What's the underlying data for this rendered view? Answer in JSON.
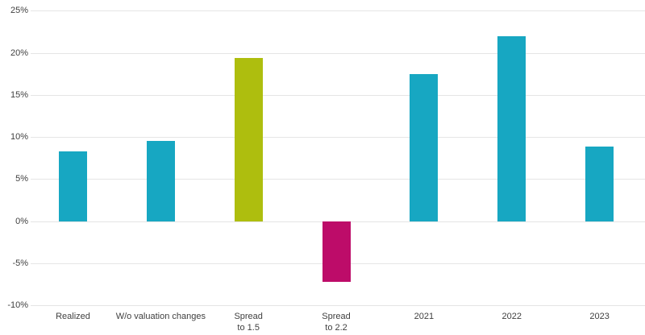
{
  "chart_data": {
    "type": "bar",
    "title": "",
    "xlabel": "",
    "ylabel": "",
    "categories": [
      "Realized",
      "W/o valuation changes",
      "Spread to 1.5",
      "Spread to 2.2",
      "2021",
      "2022",
      "2023"
    ],
    "category_lines": [
      [
        "Realized"
      ],
      [
        "W/o valuation changes"
      ],
      [
        "Spread",
        "to 1.5"
      ],
      [
        "Spread",
        "to 2.2"
      ],
      [
        "2021"
      ],
      [
        "2022"
      ],
      [
        "2023"
      ]
    ],
    "values": [
      8.3,
      9.6,
      19.4,
      -7.2,
      17.5,
      22.0,
      8.9
    ],
    "bar_colors": [
      "#17a7c2",
      "#17a7c2",
      "#aebe0e",
      "#bd0c69",
      "#17a7c2",
      "#17a7c2",
      "#17a7c2"
    ],
    "ylim": [
      -10,
      25
    ],
    "ytick_step": 5,
    "yticks": [
      25,
      20,
      15,
      10,
      5,
      0,
      -5,
      -10
    ],
    "ytick_labels": [
      "25%",
      "20%",
      "15%",
      "10%",
      "5%",
      "0%",
      "-5%",
      "-10%"
    ],
    "grid": true,
    "legend_position": "none"
  },
  "colors": {
    "background": "#ffffff",
    "gridline": "#e5e5e5",
    "axis_text": "#404040",
    "bar_teal": "#17a7c2",
    "bar_green": "#aebe0e",
    "bar_magenta": "#bd0c69"
  }
}
